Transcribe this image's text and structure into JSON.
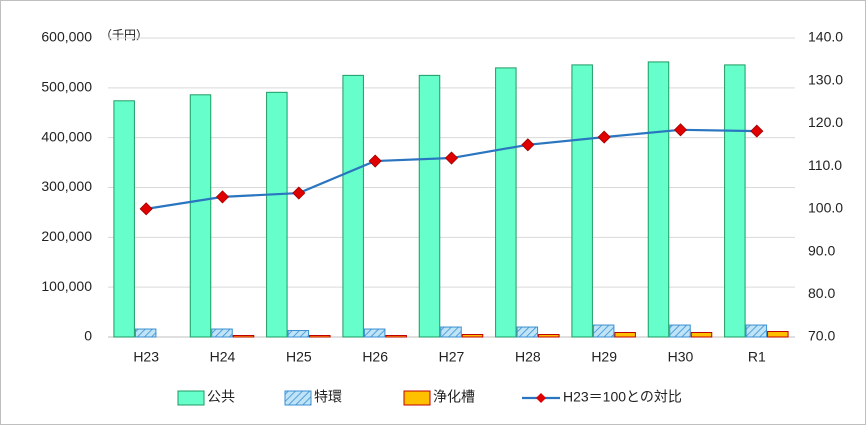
{
  "chart_data": {
    "type": "bar",
    "unit_label": "（千円）",
    "categories": [
      "H23",
      "H24",
      "H25",
      "H26",
      "H27",
      "H28",
      "H29",
      "H30",
      "R1"
    ],
    "series": [
      {
        "name": "公共",
        "type": "bar",
        "color": "#66ffcc",
        "stroke": "#1f9a63",
        "values": [
          474000,
          486000,
          491000,
          525000,
          525000,
          540000,
          546000,
          552000,
          546000
        ]
      },
      {
        "name": "特環",
        "type": "bar",
        "color": "#bfe3f7",
        "stroke": "#3a8fd0",
        "hatch": true,
        "values": [
          16000,
          16000,
          13000,
          16000,
          20000,
          20000,
          24000,
          24000,
          24000
        ]
      },
      {
        "name": "浄化槽",
        "type": "bar",
        "color": "#ffc000",
        "stroke": "#c00000",
        "values": [
          0,
          3000,
          3000,
          3000,
          5000,
          5000,
          9000,
          9000,
          11000
        ]
      },
      {
        "name": "H23＝100との対比",
        "type": "line",
        "axis": "y2",
        "color": "#2a75c0",
        "marker_color": "#e00000",
        "values": [
          100.0,
          102.8,
          103.7,
          111.2,
          111.9,
          115.0,
          116.8,
          118.5,
          118.2
        ]
      }
    ],
    "ylim": [
      0,
      600000
    ],
    "yticks": [
      0,
      {
        "value": 100000,
        "label": "100,000"
      },
      {
        "value": 200000,
        "label": "200,000"
      },
      {
        "value": 300000,
        "label": "300,000"
      },
      {
        "value": 400000,
        "label": "400,000"
      },
      {
        "value": 500000,
        "label": "500,000"
      },
      {
        "value": 600000,
        "label": "600,000"
      }
    ],
    "y2lim": [
      70,
      140
    ],
    "y2ticks": [
      {
        "value": 70,
        "label": "70.0"
      },
      {
        "value": 80,
        "label": "80.0"
      },
      {
        "value": 90,
        "label": "90.0"
      },
      {
        "value": 100,
        "label": "100.0"
      },
      {
        "value": 110,
        "label": "110.0"
      },
      {
        "value": 120,
        "label": "120.0"
      },
      {
        "value": 130,
        "label": "130.0"
      },
      {
        "value": 140,
        "label": "140.0"
      }
    ],
    "grid": true,
    "legend": "bottom"
  }
}
